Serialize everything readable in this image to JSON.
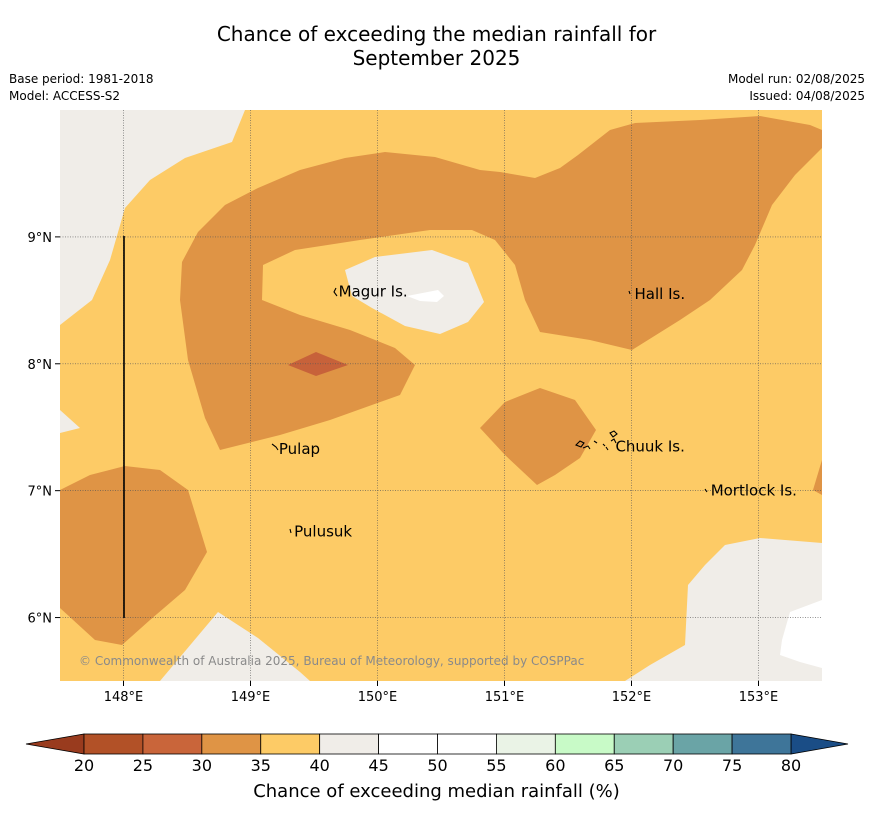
{
  "title_line1": "Chance of exceeding the median rainfall for",
  "title_line2": "September 2025",
  "base_period": "Base period: 1981-2018",
  "model": "Model: ACCESS-S2",
  "model_run": "Model run: 02/08/2025",
  "issued": "Issued: 04/08/2025",
  "copyright": "© Commonwealth of Australia 2025, Bureau of Meteorology, supported by COSPPac",
  "map": {
    "lon_range": [
      147.5,
      153.5
    ],
    "lat_range": [
      5.5,
      10.0
    ],
    "grid": true,
    "lon_ticks": [
      "148°E",
      "149°E",
      "150°E",
      "151°E",
      "152°E",
      "153°E"
    ],
    "lat_ticks": [
      "9°N",
      "8°N",
      "7°N",
      "6°N"
    ],
    "places": [
      {
        "label": "Magur Is.",
        "lon": 149.67,
        "lat": 8.57
      },
      {
        "label": "Hall Is.",
        "lon": 152.0,
        "lat": 8.55
      },
      {
        "label": "Pulap",
        "lon": 149.2,
        "lat": 7.33
      },
      {
        "label": "Chuuk Is.",
        "lon": 151.85,
        "lat": 7.35
      },
      {
        "label": "Mortlock Is.",
        "lon": 152.6,
        "lat": 7.0
      },
      {
        "label": "Pulusuk",
        "lon": 149.32,
        "lat": 6.68
      }
    ],
    "colors": {
      "c25_30": "#c7623a",
      "c30_35": "#df9445",
      "c35_40": "#fdcb66",
      "c40_45": "#f0ede8",
      "c45_55": "#ffffff"
    }
  },
  "colorbar": {
    "title": "Chance of exceeding median rainfall (%)",
    "ticks": [
      "20",
      "25",
      "30",
      "35",
      "40",
      "45",
      "50",
      "55",
      "60",
      "65",
      "70",
      "75",
      "80"
    ],
    "colors": [
      "#b25127",
      "#c9653a",
      "#df9445",
      "#fdcb66",
      "#f0ede8",
      "#ffffff",
      "#ffffff",
      "#eaf3e6",
      "#c8fac7",
      "#9bcfb5",
      "#6aa4a6",
      "#3e7599"
    ],
    "under_color": "#993b1e",
    "over_color": "#1a4d86"
  }
}
